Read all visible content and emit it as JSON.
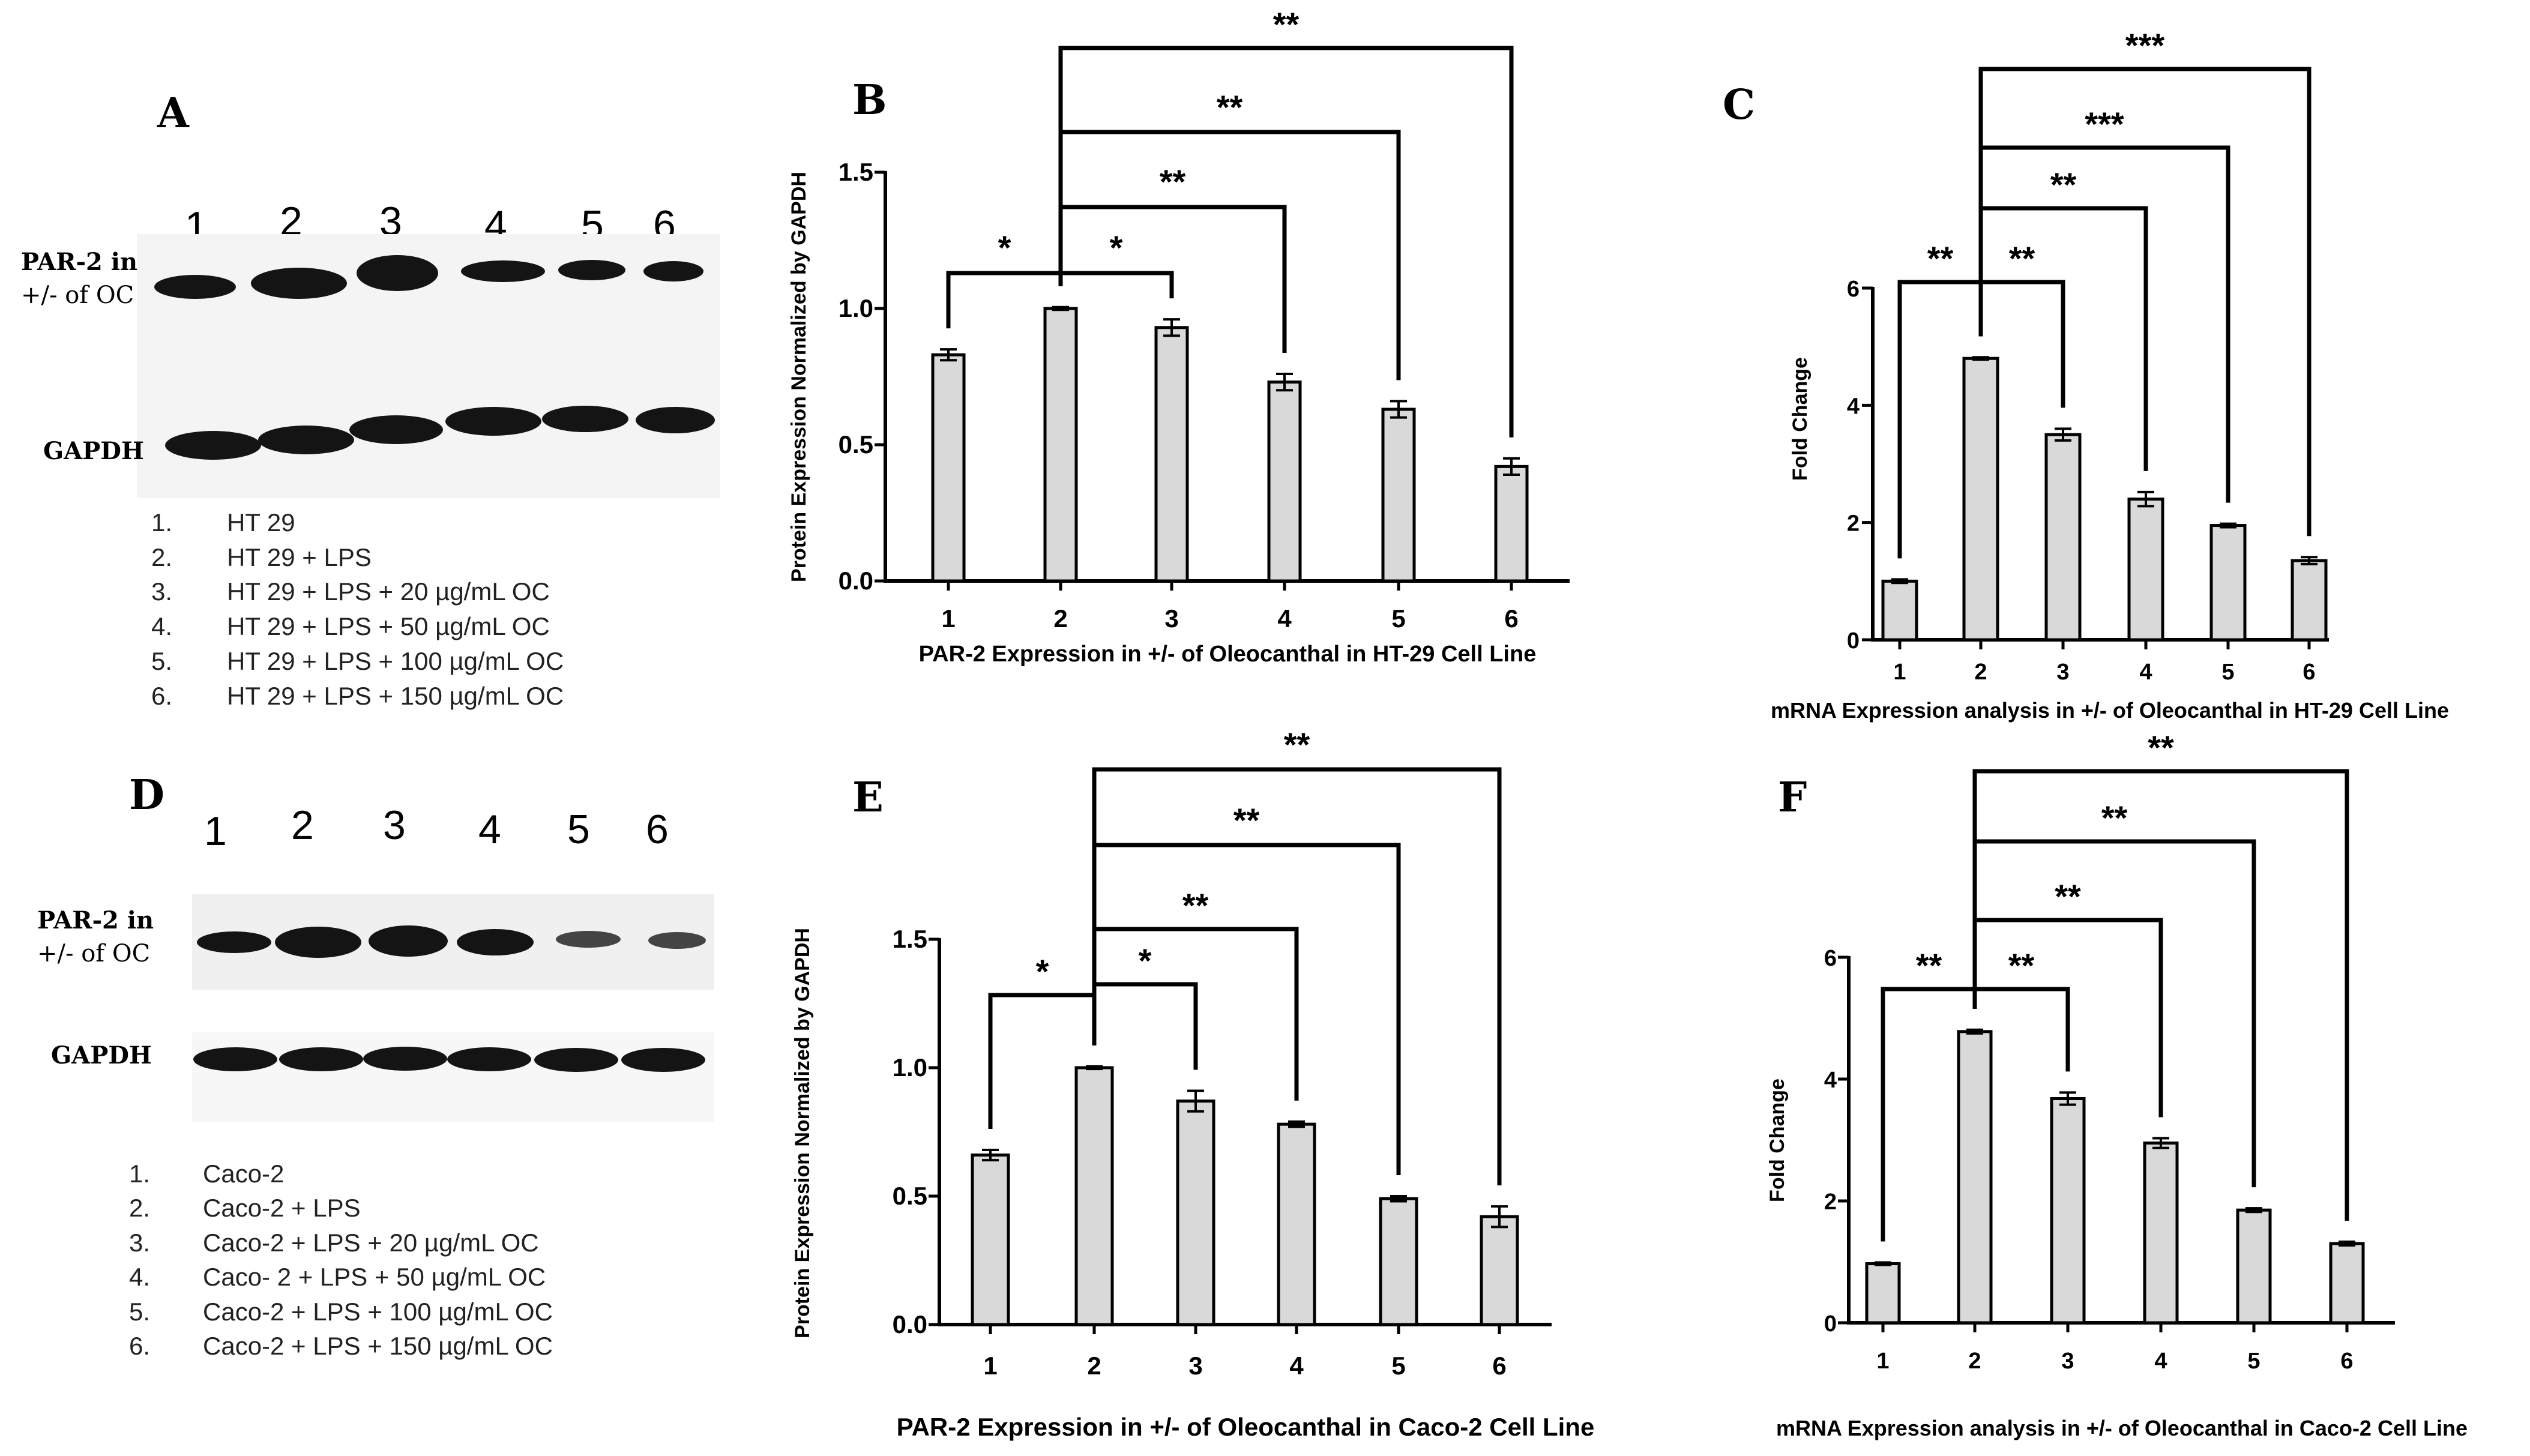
{
  "colors": {
    "bar_fill": "#d9d9d9",
    "ink": "#000000",
    "blot_bg": "#f5f5f5",
    "band": "#111111"
  },
  "panels": {
    "A": {
      "letter": "A",
      "lanes": [
        "1",
        "2",
        "3",
        "4",
        "5",
        "6"
      ],
      "par2_label_line1": "PAR-2 in",
      "par2_label_line2": "+/- of OC",
      "gapdh_label": "GAPDH",
      "legend": [
        {
          "num": "1.",
          "text": "HT 29"
        },
        {
          "num": "2.",
          "text": "HT 29 + LPS"
        },
        {
          "num": "3.",
          "text": "HT 29 + LPS + 20 µg/mL OC"
        },
        {
          "num": "4.",
          "text": "HT 29 + LPS + 50 µg/mL OC"
        },
        {
          "num": "5.",
          "text": "HT 29 + LPS + 100 µg/mL OC"
        },
        {
          "num": "6.",
          "text": "HT 29 + LPS + 150 µg/mL OC"
        }
      ]
    },
    "D": {
      "letter": "D",
      "lanes": [
        "1",
        "2",
        "3",
        "4",
        "5",
        "6"
      ],
      "par2_label_line1": "PAR-2 in",
      "par2_label_line2": "+/- of OC",
      "gapdh_label": "GAPDH",
      "legend": [
        {
          "num": "1.",
          "text": "Caco-2"
        },
        {
          "num": "2.",
          "text": "Caco-2 + LPS"
        },
        {
          "num": "3.",
          "text": "Caco-2 + LPS + 20 µg/mL OC"
        },
        {
          "num": "4.",
          "text": "Caco- 2 + LPS + 50 µg/mL OC"
        },
        {
          "num": "5.",
          "text": "Caco-2 + LPS + 100 µg/mL OC"
        },
        {
          "num": "6.",
          "text": "Caco-2 + LPS + 150 µg/mL OC"
        }
      ]
    }
  },
  "chart_data": [
    {
      "id": "B",
      "letter": "B",
      "type": "bar",
      "categories": [
        "1",
        "2",
        "3",
        "4",
        "5",
        "6"
      ],
      "values": [
        0.83,
        1.0,
        0.93,
        0.73,
        0.63,
        0.42
      ],
      "errors": [
        0.02,
        0.005,
        0.03,
        0.03,
        0.03,
        0.03
      ],
      "ylim": [
        0,
        1.5
      ],
      "yticks": [
        "0.0",
        "0.5",
        "1.0",
        "1.5"
      ],
      "ylabel": "Protein Expression Normalized by GAPDH",
      "xlabel": "PAR-2 Expression in +/- of Oleocanthal in HT-29 Cell Line",
      "significance": [
        {
          "from": 1,
          "to": 2,
          "label": "*"
        },
        {
          "from": 2,
          "to": 3,
          "label": "*"
        },
        {
          "from": 2,
          "to": 4,
          "label": "**"
        },
        {
          "from": 2,
          "to": 5,
          "label": "**"
        },
        {
          "from": 2,
          "to": 6,
          "label": "**"
        }
      ]
    },
    {
      "id": "C",
      "letter": "C",
      "type": "bar",
      "categories": [
        "1",
        "2",
        "3",
        "4",
        "5",
        "6"
      ],
      "values": [
        1.0,
        4.8,
        3.5,
        2.4,
        1.95,
        1.35
      ],
      "errors": [
        0.03,
        0.02,
        0.1,
        0.12,
        0.03,
        0.06
      ],
      "ylim": [
        0,
        6
      ],
      "yticks": [
        "0",
        "2",
        "4",
        "6"
      ],
      "ylabel": "Fold Change",
      "xlabel": "mRNA Expression analysis in +/- of Oleocanthal in HT-29 Cell Line",
      "significance": [
        {
          "from": 1,
          "to": 2,
          "label": "**"
        },
        {
          "from": 2,
          "to": 3,
          "label": "**"
        },
        {
          "from": 2,
          "to": 4,
          "label": "**"
        },
        {
          "from": 2,
          "to": 5,
          "label": "***"
        },
        {
          "from": 2,
          "to": 6,
          "label": "***"
        }
      ]
    },
    {
      "id": "E",
      "letter": "E",
      "type": "bar",
      "categories": [
        "1",
        "2",
        "3",
        "4",
        "5",
        "6"
      ],
      "values": [
        0.66,
        1.0,
        0.87,
        0.78,
        0.49,
        0.42
      ],
      "errors": [
        0.02,
        0.005,
        0.04,
        0.01,
        0.01,
        0.04
      ],
      "ylim": [
        0,
        1.5
      ],
      "yticks": [
        "0.0",
        "0.5",
        "1.0",
        "1.5"
      ],
      "ylabel": "Protein Expression Normalized by GAPDH",
      "xlabel": "PAR-2 Expression in +/- of Oleocanthal in Caco-2 Cell Line",
      "significance": [
        {
          "from": 1,
          "to": 2,
          "label": "*"
        },
        {
          "from": 2,
          "to": 3,
          "label": "*"
        },
        {
          "from": 2,
          "to": 4,
          "label": "**"
        },
        {
          "from": 2,
          "to": 5,
          "label": "**"
        },
        {
          "from": 2,
          "to": 6,
          "label": "**"
        }
      ]
    },
    {
      "id": "F",
      "letter": "F",
      "type": "bar",
      "categories": [
        "1",
        "2",
        "3",
        "4",
        "5",
        "6"
      ],
      "values": [
        0.97,
        4.78,
        3.68,
        2.95,
        1.85,
        1.3
      ],
      "errors": [
        0.02,
        0.03,
        0.1,
        0.08,
        0.03,
        0.03
      ],
      "ylim": [
        0,
        6
      ],
      "yticks": [
        "0",
        "2",
        "4",
        "6"
      ],
      "ylabel": "Fold Change",
      "xlabel": "mRNA Expression analysis in +/- of Oleocanthal in Caco-2 Cell Line",
      "significance": [
        {
          "from": 1,
          "to": 2,
          "label": "**"
        },
        {
          "from": 2,
          "to": 3,
          "label": "**"
        },
        {
          "from": 2,
          "to": 4,
          "label": "**"
        },
        {
          "from": 2,
          "to": 5,
          "label": "**"
        },
        {
          "from": 2,
          "to": 6,
          "label": "**"
        }
      ]
    }
  ]
}
